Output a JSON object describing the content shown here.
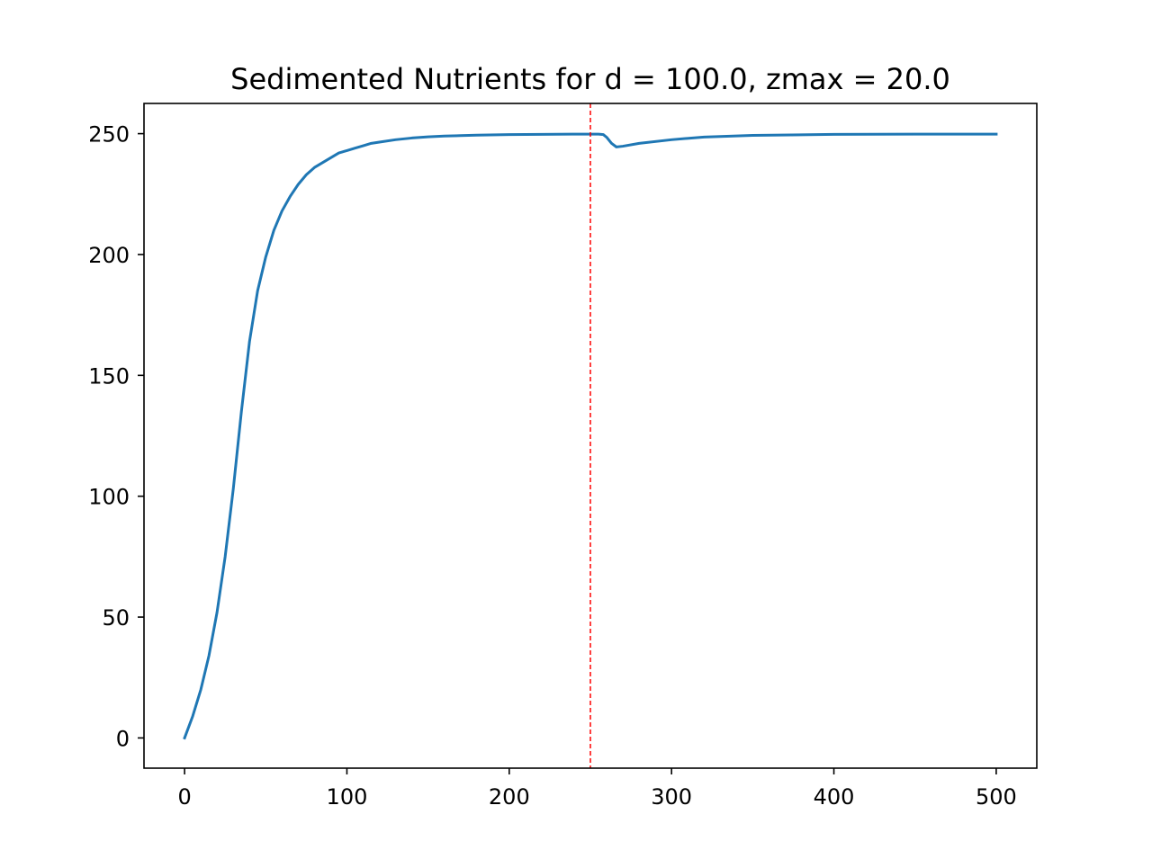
{
  "chart_data": {
    "type": "line",
    "title": "Sedimented Nutrients for d = 100.0, zmax = 20.0",
    "xlabel": "",
    "ylabel": "",
    "xlim": [
      -25,
      525
    ],
    "ylim": [
      -12.5,
      262.5
    ],
    "xticks": [
      0,
      100,
      200,
      300,
      400,
      500
    ],
    "xtick_labels": [
      "0",
      "100",
      "200",
      "300",
      "400",
      "500"
    ],
    "yticks": [
      0,
      50,
      100,
      150,
      200,
      250
    ],
    "ytick_labels": [
      "0",
      "50",
      "100",
      "150",
      "200",
      "250"
    ],
    "grid": false,
    "series": [
      {
        "name": "Sedimented Nutrients",
        "color": "#1f77b4",
        "x": [
          0,
          5,
          10,
          15,
          20,
          25,
          30,
          35,
          40,
          45,
          50,
          55,
          60,
          65,
          70,
          75,
          80,
          85,
          90,
          95,
          100,
          105,
          110,
          115,
          120,
          130,
          140,
          150,
          160,
          170,
          180,
          200,
          220,
          240,
          250,
          255,
          258,
          260,
          263,
          266,
          270,
          280,
          300,
          320,
          350,
          400,
          450,
          500
        ],
        "values": [
          0,
          9,
          20,
          34,
          52,
          75,
          103,
          135,
          164,
          185,
          199,
          210,
          218,
          224,
          229,
          233,
          236,
          238,
          240,
          242,
          243,
          244,
          245,
          246,
          246.5,
          247.5,
          248.2,
          248.7,
          249,
          249.2,
          249.4,
          249.6,
          249.7,
          249.8,
          249.8,
          249.8,
          249.6,
          248.5,
          246,
          244.5,
          244.8,
          246,
          247.5,
          248.6,
          249.3,
          249.7,
          249.8,
          249.8
        ]
      }
    ],
    "vline": {
      "x": 250,
      "color": "#ff0000",
      "style": "dashed"
    }
  }
}
